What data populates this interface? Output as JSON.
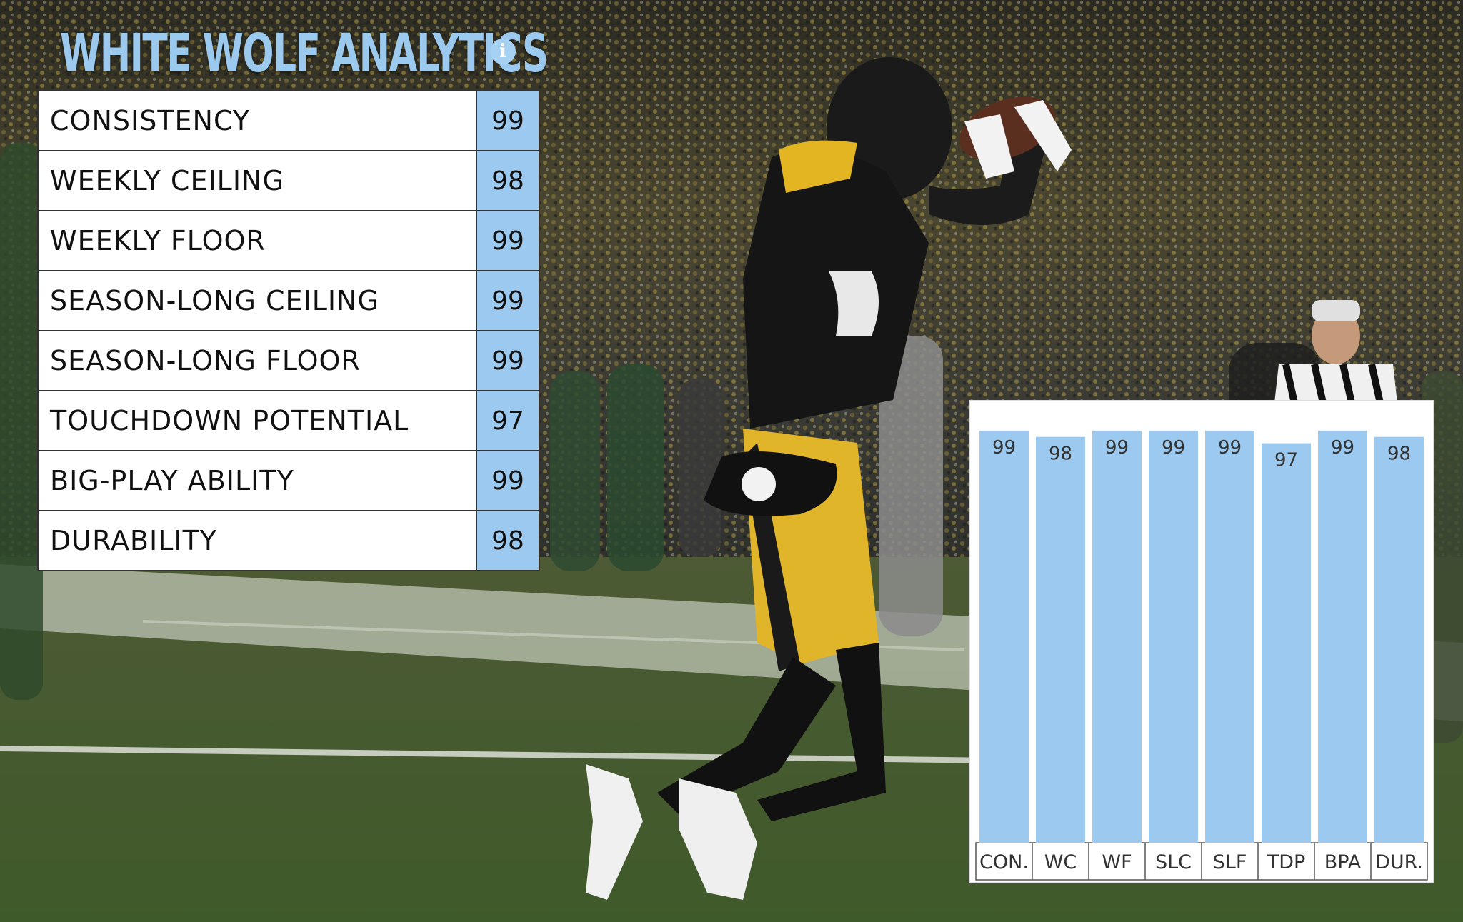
{
  "app": {
    "title": "WHITE WOLF ANALYTICS",
    "info_icon": "info-icon"
  },
  "ratings": [
    {
      "label": "CONSISTENCY",
      "value": "99"
    },
    {
      "label": "WEEKLY CEILING",
      "value": "98"
    },
    {
      "label": "WEEKLY FLOOR",
      "value": "99"
    },
    {
      "label": "SEASON-LONG CEILING",
      "value": "99"
    },
    {
      "label": "SEASON-LONG FLOOR",
      "value": "99"
    },
    {
      "label": "TOUCHDOWN POTENTIAL",
      "value": "97"
    },
    {
      "label": "BIG-PLAY ABILITY",
      "value": "99"
    },
    {
      "label": "DURABILITY",
      "value": "98"
    }
  ],
  "colors": {
    "accent": "#9cc9ee",
    "bar": "#9cc9f0"
  },
  "background_image": "football player catching ball in stadium",
  "chart_data": {
    "type": "bar",
    "categories": [
      "CON.",
      "WC",
      "WF",
      "SLC",
      "SLF",
      "TDP",
      "BPA",
      "DUR."
    ],
    "values": [
      99,
      98,
      99,
      99,
      99,
      97,
      99,
      98
    ],
    "title": "",
    "xlabel": "",
    "ylabel": "",
    "ylim": [
      0,
      100
    ],
    "grid": false,
    "data_labels": true
  }
}
